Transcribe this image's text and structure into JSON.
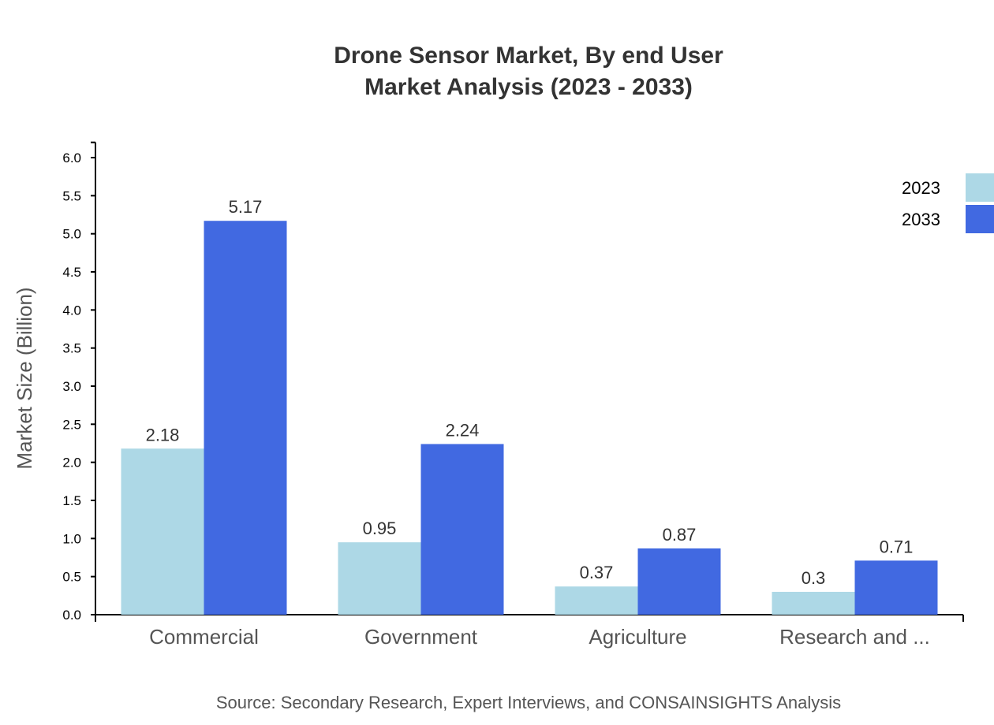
{
  "chart_data": {
    "type": "bar",
    "title": "Drone Sensor Market, By end User",
    "subtitle": "Market Analysis (2023 - 2033)",
    "xlabel": "",
    "ylabel": "Market Size (Billion)",
    "ylim": [
      0,
      6.2
    ],
    "yticks": [
      "0.0",
      "0.5",
      "1.0",
      "1.5",
      "2.0",
      "2.5",
      "3.0",
      "3.5",
      "4.0",
      "4.5",
      "5.0",
      "5.5",
      "6.0"
    ],
    "categories": [
      "Commercial",
      "Government",
      "Agriculture",
      "Research and ..."
    ],
    "series": [
      {
        "name": "2023",
        "values": [
          2.18,
          0.95,
          0.37,
          0.3
        ],
        "labels": [
          "2.18",
          "0.95",
          "0.37",
          "0.3"
        ],
        "color": "#ADD8E6"
      },
      {
        "name": "2033",
        "values": [
          5.17,
          2.24,
          0.87,
          0.71
        ],
        "labels": [
          "5.17",
          "2.24",
          "0.87",
          "0.71"
        ],
        "color": "#4169E1"
      }
    ],
    "grid": false,
    "legend": "top-right",
    "source": "Source: Secondary Research, Expert Interviews, and CONSAINSIGHTS Analysis"
  }
}
